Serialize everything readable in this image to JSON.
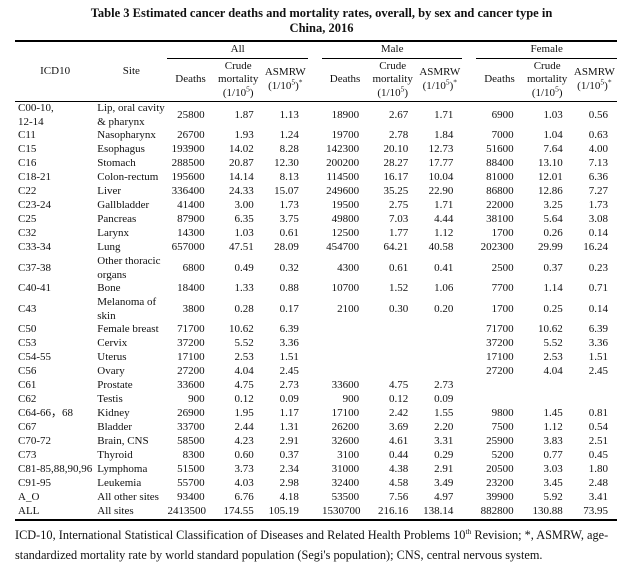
{
  "title": {
    "line1": "Table 3 Estimated cancer deaths and mortality rates, overall, by sex and cancer type in",
    "line2": "China, 2016"
  },
  "header": {
    "icd10": "ICD10",
    "site": "Site",
    "groups": [
      "All",
      "Male",
      "Female"
    ],
    "sub": {
      "deaths": "Deaths",
      "crude": [
        {
          "t": "Crude mortality (1/10"
        },
        {
          "t": "5",
          "sup": true
        },
        {
          "t": ")"
        }
      ],
      "asmrw": [
        {
          "t": "ASMRW (1/10"
        },
        {
          "t": "5",
          "sup": true
        },
        {
          "t": ")"
        },
        {
          "t": "*",
          "sup": true
        }
      ]
    }
  },
  "rows": [
    {
      "icd10": "C00-10,\n12-14",
      "site": "Lip, oral cavity\n& pharynx",
      "all": [
        "25800",
        "1.87",
        "1.13"
      ],
      "male": [
        "18900",
        "2.67",
        "1.71"
      ],
      "female": [
        "6900",
        "1.03",
        "0.56"
      ]
    },
    {
      "icd10": "C11",
      "site": "Nasopharynx",
      "all": [
        "26700",
        "1.93",
        "1.24"
      ],
      "male": [
        "19700",
        "2.78",
        "1.84"
      ],
      "female": [
        "7000",
        "1.04",
        "0.63"
      ]
    },
    {
      "icd10": "C15",
      "site": "Esophagus",
      "all": [
        "193900",
        "14.02",
        "8.28"
      ],
      "male": [
        "142300",
        "20.10",
        "12.73"
      ],
      "female": [
        "51600",
        "7.64",
        "4.00"
      ]
    },
    {
      "icd10": "C16",
      "site": "Stomach",
      "all": [
        "288500",
        "20.87",
        "12.30"
      ],
      "male": [
        "200200",
        "28.27",
        "17.77"
      ],
      "female": [
        "88400",
        "13.10",
        "7.13"
      ]
    },
    {
      "icd10": "C18-21",
      "site": "Colon-rectum",
      "all": [
        "195600",
        "14.14",
        "8.13"
      ],
      "male": [
        "114500",
        "16.17",
        "10.04"
      ],
      "female": [
        "81000",
        "12.01",
        "6.36"
      ]
    },
    {
      "icd10": "C22",
      "site": "Liver",
      "all": [
        "336400",
        "24.33",
        "15.07"
      ],
      "male": [
        "249600",
        "35.25",
        "22.90"
      ],
      "female": [
        "86800",
        "12.86",
        "7.27"
      ]
    },
    {
      "icd10": "C23-24",
      "site": "Gallbladder",
      "all": [
        "41400",
        "3.00",
        "1.73"
      ],
      "male": [
        "19500",
        "2.75",
        "1.71"
      ],
      "female": [
        "22000",
        "3.25",
        "1.73"
      ]
    },
    {
      "icd10": "C25",
      "site": "Pancreas",
      "all": [
        "87900",
        "6.35",
        "3.75"
      ],
      "male": [
        "49800",
        "7.03",
        "4.44"
      ],
      "female": [
        "38100",
        "5.64",
        "3.08"
      ]
    },
    {
      "icd10": "C32",
      "site": "Larynx",
      "all": [
        "14300",
        "1.03",
        "0.61"
      ],
      "male": [
        "12500",
        "1.77",
        "1.12"
      ],
      "female": [
        "1700",
        "0.26",
        "0.14"
      ]
    },
    {
      "icd10": "C33-34",
      "site": "Lung",
      "all": [
        "657000",
        "47.51",
        "28.09"
      ],
      "male": [
        "454700",
        "64.21",
        "40.58"
      ],
      "female": [
        "202300",
        "29.99",
        "16.24"
      ]
    },
    {
      "icd10": "C37-38",
      "site": "Other thoracic\norgans",
      "all": [
        "6800",
        "0.49",
        "0.32"
      ],
      "male": [
        "4300",
        "0.61",
        "0.41"
      ],
      "female": [
        "2500",
        "0.37",
        "0.23"
      ]
    },
    {
      "icd10": "C40-41",
      "site": "Bone",
      "all": [
        "18400",
        "1.33",
        "0.88"
      ],
      "male": [
        "10700",
        "1.52",
        "1.06"
      ],
      "female": [
        "7700",
        "1.14",
        "0.71"
      ]
    },
    {
      "icd10": "C43",
      "site": "Melanoma of\nskin",
      "all": [
        "3800",
        "0.28",
        "0.17"
      ],
      "male": [
        "2100",
        "0.30",
        "0.20"
      ],
      "female": [
        "1700",
        "0.25",
        "0.14"
      ]
    },
    {
      "icd10": "C50",
      "site": "Female breast",
      "all": [
        "71700",
        "10.62",
        "6.39"
      ],
      "male": [
        "",
        "",
        ""
      ],
      "female": [
        "71700",
        "10.62",
        "6.39"
      ]
    },
    {
      "icd10": "C53",
      "site": "Cervix",
      "all": [
        "37200",
        "5.52",
        "3.36"
      ],
      "male": [
        "",
        "",
        ""
      ],
      "female": [
        "37200",
        "5.52",
        "3.36"
      ]
    },
    {
      "icd10": "C54-55",
      "site": "Uterus",
      "all": [
        "17100",
        "2.53",
        "1.51"
      ],
      "male": [
        "",
        "",
        ""
      ],
      "female": [
        "17100",
        "2.53",
        "1.51"
      ]
    },
    {
      "icd10": "C56",
      "site": "Ovary",
      "all": [
        "27200",
        "4.04",
        "2.45"
      ],
      "male": [
        "",
        "",
        ""
      ],
      "female": [
        "27200",
        "4.04",
        "2.45"
      ]
    },
    {
      "icd10": "C61",
      "site": "Prostate",
      "all": [
        "33600",
        "4.75",
        "2.73"
      ],
      "male": [
        "33600",
        "4.75",
        "2.73"
      ],
      "female": [
        "",
        "",
        ""
      ]
    },
    {
      "icd10": "C62",
      "site": "Testis",
      "all": [
        "900",
        "0.12",
        "0.09"
      ],
      "male": [
        "900",
        "0.12",
        "0.09"
      ],
      "female": [
        "",
        "",
        ""
      ]
    },
    {
      "icd10": "C64-66，68",
      "site": "Kidney",
      "all": [
        "26900",
        "1.95",
        "1.17"
      ],
      "male": [
        "17100",
        "2.42",
        "1.55"
      ],
      "female": [
        "9800",
        "1.45",
        "0.81"
      ]
    },
    {
      "icd10": "C67",
      "site": "Bladder",
      "all": [
        "33700",
        "2.44",
        "1.31"
      ],
      "male": [
        "26200",
        "3.69",
        "2.20"
      ],
      "female": [
        "7500",
        "1.12",
        "0.54"
      ]
    },
    {
      "icd10": "C70-72",
      "site": "Brain, CNS",
      "all": [
        "58500",
        "4.23",
        "2.91"
      ],
      "male": [
        "32600",
        "4.61",
        "3.31"
      ],
      "female": [
        "25900",
        "3.83",
        "2.51"
      ]
    },
    {
      "icd10": "C73",
      "site": "Thyroid",
      "all": [
        "8300",
        "0.60",
        "0.37"
      ],
      "male": [
        "3100",
        "0.44",
        "0.29"
      ],
      "female": [
        "5200",
        "0.77",
        "0.45"
      ]
    },
    {
      "icd10": "C81-85,88,90,96",
      "site": "Lymphoma",
      "all": [
        "51500",
        "3.73",
        "2.34"
      ],
      "male": [
        "31000",
        "4.38",
        "2.91"
      ],
      "female": [
        "20500",
        "3.03",
        "1.80"
      ]
    },
    {
      "icd10": "C91-95",
      "site": "Leukemia",
      "all": [
        "55700",
        "4.03",
        "2.98"
      ],
      "male": [
        "32400",
        "4.58",
        "3.49"
      ],
      "female": [
        "23200",
        "3.45",
        "2.48"
      ]
    },
    {
      "icd10": "A_O",
      "site": "All other sites",
      "all": [
        "93400",
        "6.76",
        "4.18"
      ],
      "male": [
        "53500",
        "7.56",
        "4.97"
      ],
      "female": [
        "39900",
        "5.92",
        "3.41"
      ]
    },
    {
      "icd10": "ALL",
      "site": "All sites",
      "all": [
        "2413500",
        "174.55",
        "105.19"
      ],
      "male": [
        "1530700",
        "216.16",
        "138.14"
      ],
      "female": [
        "882800",
        "130.88",
        "73.95"
      ]
    }
  ],
  "footnote": [
    {
      "t": "ICD-10, International Statistical Classification of Diseases and Related Health Problems 10"
    },
    {
      "t": "th",
      "sup": true
    },
    {
      "t": " Revision; *, ASMRW, age-standardized mortality rate by world standard population (Segi's population); CNS, central nervous system."
    }
  ]
}
